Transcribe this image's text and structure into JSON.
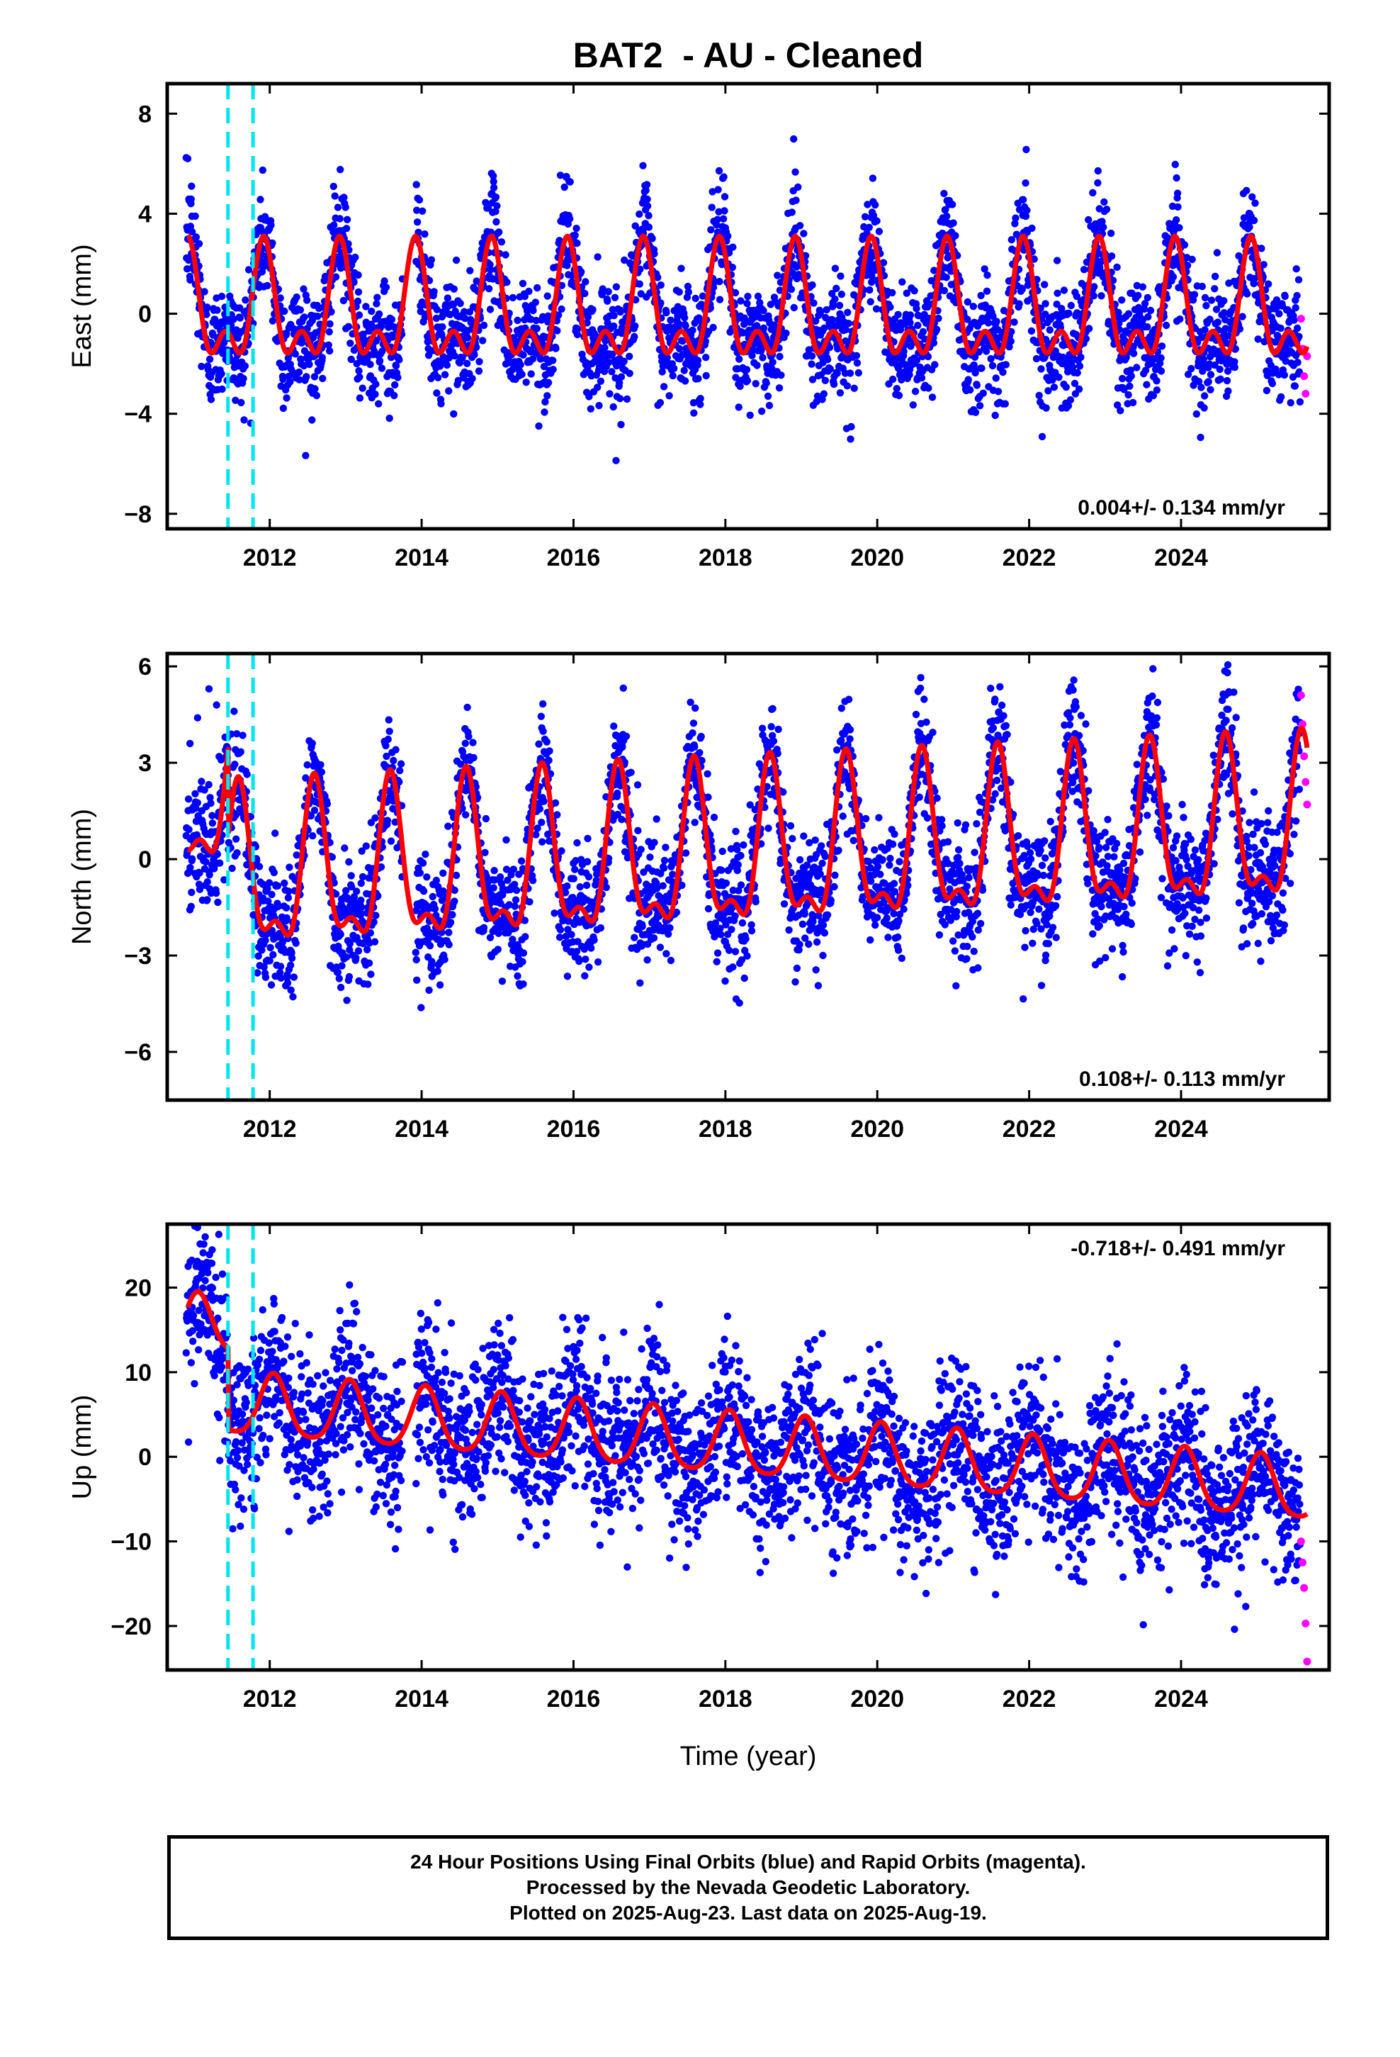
{
  "chart_data": {
    "type": "scatter",
    "title": "BAT2  - AU - Cleaned",
    "xlabel": "Time (year)",
    "xlim": [
      2010.65,
      2025.95
    ],
    "x_ticks": [
      2012,
      2014,
      2016,
      2018,
      2020,
      2022,
      2024
    ],
    "equipment_change_lines": [
      2011.45,
      2011.78
    ],
    "colors": {
      "final_orbits": "#0000ff",
      "rapid_orbits": "#ff00ff",
      "model": "#ff0000",
      "offsets": "#00e5ee"
    },
    "panels": [
      {
        "name": "east",
        "ylabel": "East (mm)",
        "ylim": [
          -8.6,
          9.2
        ],
        "y_ticks": [
          -8,
          -4,
          0,
          4,
          8
        ],
        "rate": "0.004+/- 0.134 mm/yr",
        "rate_position": "bottom-right",
        "model": {
          "offset": 0.0,
          "trend": 0.0,
          "annual_cos": 1.9,
          "annual_sin": 0.0,
          "semi_cos": 1.2,
          "semi_sin": 0.0,
          "phase_year": 2010.92
        },
        "scatter_sd": 1.15,
        "start_points": [
          [
            2010.92,
            6.2
          ],
          [
            2010.97,
            5.1
          ],
          [
            2011.02,
            3.9
          ],
          [
            2011.07,
            2.8
          ]
        ],
        "rapid_points": [
          [
            2025.58,
            -0.2
          ],
          [
            2025.6,
            -1.4
          ],
          [
            2025.62,
            -2.5
          ],
          [
            2025.64,
            -3.2
          ],
          [
            2025.66,
            -1.7
          ]
        ]
      },
      {
        "name": "north",
        "ylabel": "North (mm)",
        "ylim": [
          -7.5,
          6.4
        ],
        "y_ticks": [
          -6,
          -3,
          0,
          3,
          6
        ],
        "rate": "0.108+/- 0.113 mm/yr",
        "rate_position": "bottom-right",
        "model": {
          "offset": 0.0,
          "trend": 0.108,
          "annual_cos": 2.2,
          "annual_sin": 0.6,
          "semi_cos": 0.9,
          "semi_sin": 0.4,
          "phase_year": 2011.55
        },
        "early_offset": 2.8,
        "scatter_sd": 0.95,
        "start_points": [
          [
            2010.95,
            3.6
          ],
          [
            2011.05,
            4.4
          ],
          [
            2011.2,
            5.3
          ],
          [
            2011.3,
            4.8
          ]
        ],
        "rapid_points": [
          [
            2025.58,
            5.1
          ],
          [
            2025.6,
            4.2
          ],
          [
            2025.62,
            3.2
          ],
          [
            2025.64,
            2.4
          ],
          [
            2025.66,
            1.7
          ]
        ]
      },
      {
        "name": "up",
        "ylabel": "Up (mm)",
        "ylim": [
          -25.2,
          27.5
        ],
        "y_ticks": [
          -20,
          -10,
          0,
          10,
          20
        ],
        "rate": "-0.718+/- 0.491 mm/yr",
        "rate_position": "top-right",
        "model": {
          "offset": 1.4,
          "trend": -0.718,
          "annual_cos": 3.6,
          "annual_sin": 0.0,
          "semi_cos": 0.6,
          "semi_sin": 0.0,
          "phase_year": 2011.05
        },
        "early_offset": 9.5,
        "scatter_sd": 4.6,
        "start_points": [
          [
            2010.95,
            17.0
          ],
          [
            2011.05,
            21.0
          ],
          [
            2011.15,
            26.0
          ],
          [
            2011.25,
            18.5
          ]
        ],
        "rapid_points": [
          [
            2025.58,
            -10.0
          ],
          [
            2025.6,
            -12.5
          ],
          [
            2025.62,
            -15.5
          ],
          [
            2025.64,
            -19.7
          ],
          [
            2025.66,
            -24.2
          ]
        ]
      }
    ]
  },
  "footer": {
    "line1": "24 Hour Positions Using Final Orbits (blue) and Rapid Orbits (magenta).",
    "line2": "Processed by the Nevada Geodetic Laboratory.",
    "line3": "Plotted on 2025-Aug-23. Last data on 2025-Aug-19."
  }
}
